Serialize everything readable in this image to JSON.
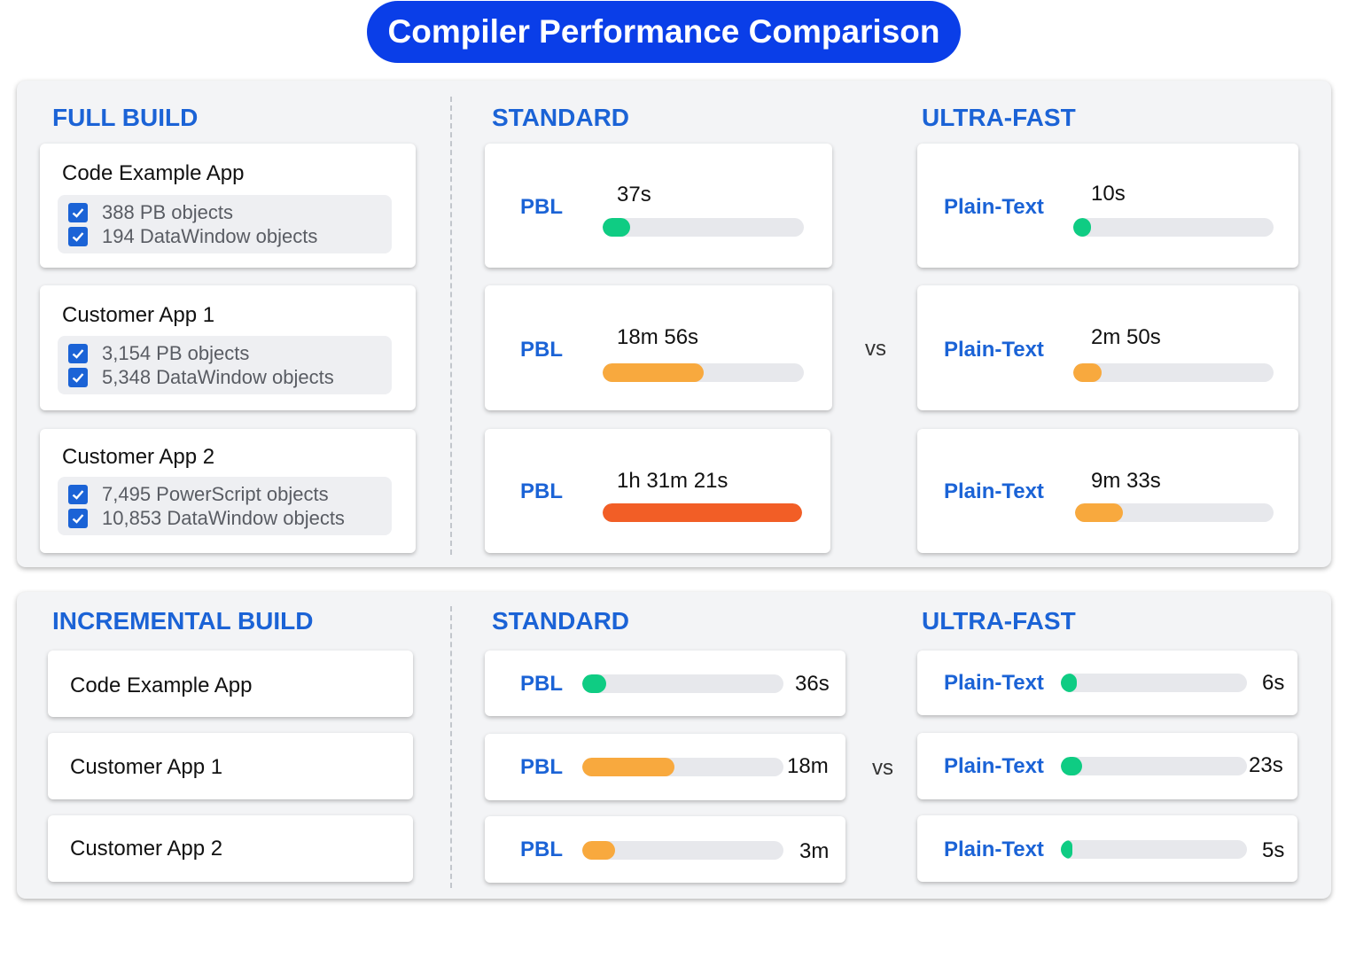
{
  "title": "Compiler Performance Comparison",
  "colors": {
    "fast": "#0fcc83",
    "medium": "#f8a93e",
    "slow": "#f25e26",
    "accent": "#1b63d6",
    "title_bg": "#0a3ee8"
  },
  "full_build": {
    "heading": "FULL BUILD",
    "standard_heading": "STANDARD",
    "ultra_heading": "ULTRA-FAST",
    "vs": "vs",
    "apps": [
      {
        "name": "Code Example App",
        "objects": [
          "388 PB objects",
          "194 DataWindow objects"
        ]
      },
      {
        "name": "Customer App 1",
        "objects": [
          "3,154 PB objects",
          "5,348 DataWindow objects"
        ]
      },
      {
        "name": "Customer App 2",
        "objects": [
          "7,495 PowerScript objects",
          "10,853 DataWindow objects"
        ]
      }
    ],
    "standard": [
      {
        "label": "PBL",
        "time": "37s",
        "fraction": 0.135,
        "color": "fast"
      },
      {
        "label": "PBL",
        "time": "18m 56s",
        "fraction": 0.5,
        "color": "medium"
      },
      {
        "label": "PBL",
        "time": "1h 31m 21s",
        "fraction": 1.0,
        "color": "slow"
      }
    ],
    "ultra": [
      {
        "label": "Plain-Text",
        "time": "10s",
        "fraction": 0.09,
        "color": "fast"
      },
      {
        "label": "Plain-Text",
        "time": "2m 50s",
        "fraction": 0.14,
        "color": "medium"
      },
      {
        "label": "Plain-Text",
        "time": "9m 33s",
        "fraction": 0.24,
        "color": "medium"
      }
    ]
  },
  "incremental_build": {
    "heading": "INCREMENTAL BUILD",
    "standard_heading": "STANDARD",
    "ultra_heading": "ULTRA-FAST",
    "vs": "vs",
    "apps": [
      {
        "name": "Code Example App"
      },
      {
        "name": "Customer App 1"
      },
      {
        "name": "Customer App 2"
      }
    ],
    "standard": [
      {
        "label": "PBL",
        "time": "36s",
        "fraction": 0.12,
        "color": "fast"
      },
      {
        "label": "PBL",
        "time": "18m",
        "fraction": 0.46,
        "color": "medium"
      },
      {
        "label": "PBL",
        "time": "3m",
        "fraction": 0.165,
        "color": "medium"
      }
    ],
    "ultra": [
      {
        "label": "Plain-Text",
        "time": "6s",
        "fraction": 0.085,
        "color": "fast"
      },
      {
        "label": "Plain-Text",
        "time": "23s",
        "fraction": 0.115,
        "color": "fast"
      },
      {
        "label": "Plain-Text",
        "time": "5s",
        "fraction": 0.06,
        "color": "fast"
      }
    ]
  },
  "chart_data": [
    {
      "type": "bar",
      "title": "FULL BUILD",
      "categories": [
        "Code Example App",
        "Customer App 1",
        "Customer App 2"
      ],
      "series": [
        {
          "name": "STANDARD",
          "values": [
            "37s",
            "18m 56s",
            "1h 31m 21s"
          ]
        },
        {
          "name": "ULTRA-FAST",
          "values": [
            "10s",
            "2m 50s",
            "9m 33s"
          ]
        }
      ]
    },
    {
      "type": "bar",
      "title": "INCREMENTAL BUILD",
      "categories": [
        "Code Example App",
        "Customer App 1",
        "Customer App 2"
      ],
      "series": [
        {
          "name": "STANDARD",
          "values": [
            "36s",
            "18m",
            "3m"
          ]
        },
        {
          "name": "ULTRA-FAST",
          "values": [
            "6s",
            "23s",
            "5s"
          ]
        }
      ]
    }
  ]
}
